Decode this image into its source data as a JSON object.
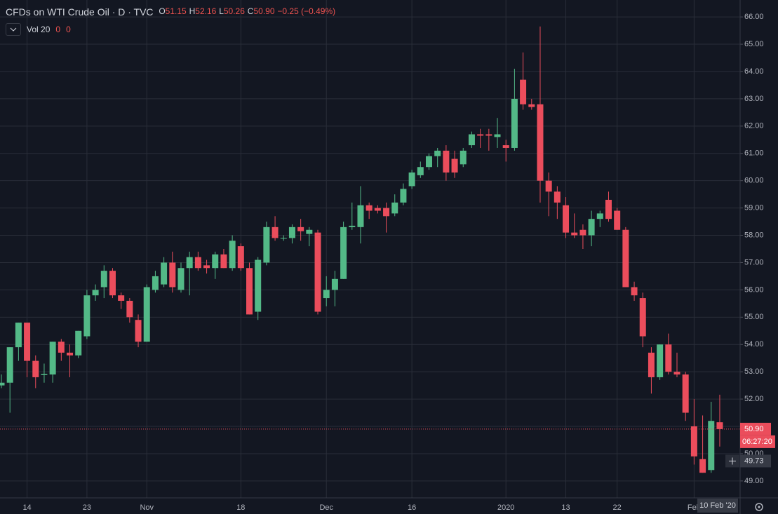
{
  "header": {
    "title": "CFDs on WTI Crude Oil · D · TVC",
    "o_key": "O",
    "o_val": "51.15",
    "h_key": "H",
    "h_val": "52.16",
    "l_key": "L",
    "l_val": "50.26",
    "c_key": "C",
    "c_val": "50.90",
    "change": "−0.25 (−0.49%)",
    "vol_label": "Vol 20",
    "vol_values": [
      "0",
      "0"
    ]
  },
  "chart_data": {
    "type": "candlestick",
    "categories": [
      null,
      null,
      null,
      "14",
      null,
      null,
      null,
      null,
      null,
      null,
      "23",
      null,
      null,
      null,
      null,
      null,
      null,
      "Nov",
      null,
      null,
      null,
      null,
      null,
      null,
      null,
      null,
      null,
      null,
      "18",
      null,
      null,
      null,
      null,
      null,
      null,
      null,
      null,
      null,
      "Dec",
      null,
      null,
      null,
      null,
      null,
      null,
      null,
      null,
      null,
      "16",
      null,
      null,
      null,
      null,
      null,
      null,
      null,
      null,
      null,
      null,
      "2020",
      null,
      null,
      null,
      null,
      null,
      null,
      "13",
      null,
      null,
      null,
      null,
      null,
      "22",
      null,
      null,
      null,
      null,
      null,
      null,
      null,
      null,
      "Feb",
      null,
      null,
      null
    ],
    "open": [
      52.5,
      52.6,
      53.9,
      54.8,
      53.4,
      52.88,
      52.9,
      54.1,
      53.7,
      53.6,
      54.3,
      55.8,
      56.1,
      56.7,
      55.8,
      55.6,
      54.9,
      54.1,
      56.0,
      56.2,
      57.0,
      56.0,
      56.8,
      57.2,
      56.9,
      56.8,
      57.3,
      56.8,
      57.6,
      56.8,
      55.2,
      57.0,
      58.3,
      57.9,
      57.9,
      58.3,
      58.05,
      58.1,
      55.7,
      56.0,
      56.4,
      58.3,
      58.3,
      59.1,
      59.0,
      59.0,
      58.8,
      59.2,
      59.8,
      60.2,
      60.5,
      60.9,
      61.1,
      60.8,
      60.6,
      61.3,
      61.7,
      61.7,
      61.6,
      61.3,
      61.2,
      63.7,
      62.8,
      62.8,
      60.0,
      59.6,
      59.1,
      58.1,
      58.2,
      58.0,
      58.6,
      59.3,
      58.9,
      58.2,
      56.1,
      55.7,
      53.7,
      52.8,
      54.0,
      53.0,
      52.9,
      51.0,
      49.8,
      49.4,
      51.15
    ],
    "high": [
      52.9,
      53.9,
      54.8,
      54.8,
      53.6,
      53.3,
      54.1,
      54.2,
      54.0,
      54.5,
      56.0,
      56.2,
      56.9,
      56.8,
      55.9,
      55.7,
      55.1,
      56.2,
      56.7,
      57.2,
      57.4,
      57.0,
      57.4,
      57.4,
      57.1,
      57.4,
      57.5,
      58.0,
      57.7,
      57.0,
      57.2,
      58.5,
      58.7,
      58.0,
      58.4,
      58.6,
      58.3,
      58.2,
      56.5,
      56.7,
      58.5,
      59.2,
      59.8,
      59.2,
      59.1,
      59.2,
      59.5,
      59.9,
      60.4,
      60.7,
      61.0,
      61.2,
      61.3,
      61.1,
      61.2,
      61.8,
      61.9,
      61.9,
      62.3,
      61.5,
      64.1,
      64.7,
      63.0,
      65.65,
      60.3,
      59.8,
      59.4,
      58.8,
      58.4,
      58.9,
      58.9,
      59.6,
      59.0,
      58.3,
      56.3,
      55.9,
      53.9,
      54.0,
      54.4,
      53.7,
      53.0,
      52.0,
      51.4,
      51.9,
      52.16
    ],
    "low": [
      52.4,
      51.5,
      53.4,
      52.8,
      52.4,
      52.6,
      52.6,
      53.4,
      52.8,
      53.5,
      54.2,
      55.6,
      55.7,
      55.7,
      55.3,
      54.8,
      53.9,
      54.1,
      55.9,
      56.1,
      55.9,
      55.9,
      55.8,
      56.7,
      56.6,
      56.4,
      56.8,
      56.7,
      56.7,
      55.1,
      54.9,
      56.9,
      57.8,
      57.8,
      57.7,
      57.8,
      57.6,
      55.1,
      55.4,
      55.4,
      56.4,
      58.2,
      57.7,
      58.6,
      58.8,
      58.1,
      58.7,
      59.1,
      59.7,
      60.1,
      60.4,
      60.5,
      60.0,
      60.1,
      60.5,
      61.2,
      61.2,
      61.1,
      61.2,
      60.7,
      61.1,
      62.6,
      62.6,
      59.2,
      58.7,
      58.6,
      57.9,
      57.9,
      57.5,
      57.6,
      58.3,
      58.5,
      58.2,
      56.1,
      55.6,
      53.9,
      52.2,
      52.7,
      52.9,
      52.8,
      51.2,
      49.6,
      49.3,
      49.3,
      50.26
    ],
    "close": [
      52.6,
      53.9,
      54.8,
      53.4,
      52.8,
      52.92,
      54.1,
      53.7,
      53.6,
      54.5,
      55.8,
      56.0,
      56.7,
      55.8,
      55.6,
      55.0,
      54.1,
      56.1,
      56.5,
      57.0,
      56.1,
      56.8,
      57.2,
      56.8,
      56.8,
      57.3,
      56.8,
      57.8,
      56.8,
      55.1,
      57.1,
      58.3,
      57.9,
      57.9,
      58.3,
      58.15,
      58.2,
      55.2,
      56.0,
      56.4,
      58.3,
      58.35,
      59.1,
      58.9,
      58.9,
      58.7,
      59.2,
      59.7,
      60.3,
      60.5,
      60.9,
      61.1,
      60.3,
      60.3,
      61.1,
      61.7,
      61.65,
      61.65,
      61.7,
      61.2,
      63.0,
      62.8,
      62.7,
      60.0,
      59.6,
      59.2,
      58.1,
      58.0,
      58.0,
      58.6,
      58.8,
      58.6,
      58.2,
      56.1,
      55.8,
      54.3,
      52.8,
      54.0,
      53.0,
      52.9,
      51.5,
      49.9,
      49.3,
      51.2,
      50.9
    ],
    "up_color": "#53b987",
    "down_color": "#eb4d5c",
    "ylim": [
      48.38,
      66.62
    ],
    "yticks": [
      {
        "value": 49,
        "label": "49.00"
      },
      {
        "value": 50,
        "label": "50.00"
      },
      {
        "value": 51,
        "label": "51.00"
      },
      {
        "value": 52,
        "label": "52.00"
      },
      {
        "value": 53,
        "label": "53.00"
      },
      {
        "value": 54,
        "label": "54.00"
      },
      {
        "value": 55,
        "label": "55.00"
      },
      {
        "value": 56,
        "label": "56.00"
      },
      {
        "value": 57,
        "label": "57.00"
      },
      {
        "value": 58,
        "label": "58.00"
      },
      {
        "value": 59,
        "label": "59.00"
      },
      {
        "value": 60,
        "label": "60.00"
      },
      {
        "value": 61,
        "label": "61.00"
      },
      {
        "value": 62,
        "label": "62.00"
      },
      {
        "value": 63,
        "label": "63.00"
      },
      {
        "value": 64,
        "label": "64.00"
      },
      {
        "value": 65,
        "label": "65.00"
      },
      {
        "value": 66,
        "label": "66.00"
      }
    ],
    "grid": true,
    "last_price": {
      "value": 50.9,
      "label": "50.90"
    },
    "countdown": "06:27:20",
    "crosshair_price": {
      "value": 49.73,
      "label": "49.73"
    },
    "date_tag": "10 Feb '20"
  }
}
